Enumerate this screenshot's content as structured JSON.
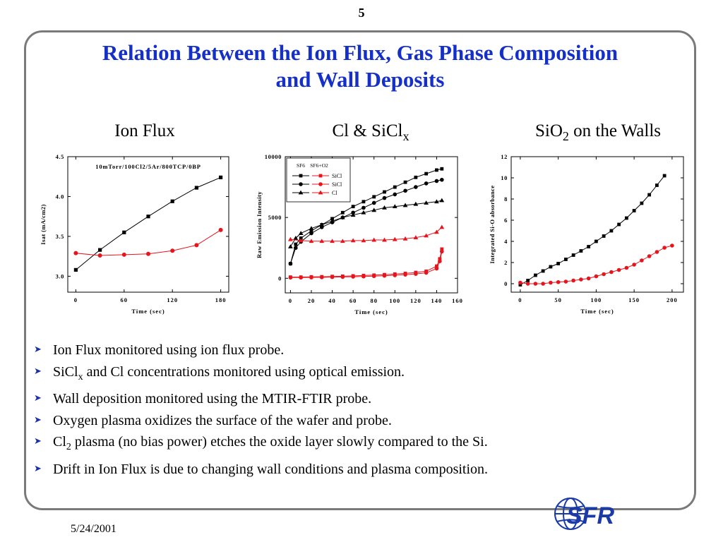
{
  "page_number": "5",
  "title_line1": "Relation Between the Ion Flux, Gas Phase Composition",
  "title_line2": "and Wall Deposits",
  "headings": {
    "ion_flux": "Ion Flux",
    "clsicl_pre": "Cl & SiCl",
    "clsicl_sub": "x",
    "sio2_pre": "SiO",
    "sio2_sub": "2",
    "sio2_post": " on the Walls"
  },
  "bullets": [
    {
      "pre": "Ion Flux monitored using ion flux probe.",
      "sub": "",
      "post": ""
    },
    {
      "pre": "SiCl",
      "sub": "x",
      "post": " and Cl concentrations monitored using optical emission."
    },
    {
      "pre": "Wall deposition monitored using the MTIR-FTIR probe.",
      "sub": "",
      "post": ""
    },
    {
      "pre": "Oxygen plasma oxidizes the surface of the wafer and probe.",
      "sub": "",
      "post": ""
    },
    {
      "pre": "Cl",
      "sub": "2",
      "post": " plasma (no bias power) etches the oxide layer slowly compared to the Si."
    },
    {
      "pre": "Drift in Ion Flux is due to changing wall conditions and plasma composition.",
      "sub": "",
      "post": ""
    }
  ],
  "date": "5/24/2001",
  "logo_text": "SFR",
  "colors": {
    "title": "#1530c8",
    "red": "#e8141c",
    "black": "#000000",
    "logo_blue": "#1a3aa8"
  },
  "chart_data": [
    {
      "type": "line",
      "annotation": "10mTorr/100Cl2/5Ar/800TCP/0BP",
      "xlabel": "Time (sec)",
      "ylabel": "Isat (mA/cm2)",
      "xlim": [
        -10,
        190
      ],
      "ylim": [
        2.8,
        4.5
      ],
      "xticks": [
        0,
        60,
        120,
        180
      ],
      "yticks": [
        3.0,
        3.5,
        4.0,
        4.5
      ],
      "ytick_labels": [
        "3.0",
        "3.5",
        "4.0",
        "4.5"
      ],
      "grid": false,
      "series": [
        {
          "color": "#000000",
          "marker": "square",
          "x": [
            0,
            30,
            60,
            90,
            120,
            150,
            180
          ],
          "y": [
            3.08,
            3.33,
            3.55,
            3.75,
            3.94,
            4.11,
            4.24
          ]
        },
        {
          "color": "#e8141c",
          "marker": "circle",
          "x": [
            0,
            30,
            60,
            90,
            120,
            150,
            180
          ],
          "y": [
            3.29,
            3.26,
            3.27,
            3.28,
            3.32,
            3.39,
            3.58
          ]
        }
      ]
    },
    {
      "type": "line",
      "xlabel": "Time (sec)",
      "ylabel": "Raw Emission Intensity",
      "xlim": [
        -5,
        160
      ],
      "ylim": [
        -1200,
        10000
      ],
      "xticks": [
        0,
        20,
        40,
        60,
        80,
        100,
        120,
        140,
        160
      ],
      "yticks": [
        0,
        5000,
        10000
      ],
      "ytick_labels": [
        "0",
        "5000",
        "10000"
      ],
      "grid": false,
      "legend": {
        "headers": [
          "SF6",
          "SF6+O2"
        ],
        "rows": [
          "SiCl",
          "SiCl",
          "Cl"
        ],
        "position": "top-left"
      },
      "series": [
        {
          "name": "SiCl",
          "color": "#000000",
          "marker": "square",
          "x": [
            0,
            5,
            10,
            20,
            30,
            40,
            50,
            60,
            70,
            80,
            90,
            100,
            110,
            120,
            130,
            140,
            145
          ],
          "y": [
            1200,
            2800,
            3300,
            3900,
            4400,
            4900,
            5400,
            5900,
            6300,
            6700,
            7100,
            7500,
            7900,
            8300,
            8600,
            8900,
            9000
          ]
        },
        {
          "name": "SiCl",
          "color": "#000000",
          "marker": "circle",
          "x": [
            0,
            5,
            10,
            20,
            30,
            40,
            50,
            60,
            70,
            80,
            90,
            100,
            110,
            120,
            130,
            140,
            145
          ],
          "y": [
            1200,
            2500,
            3000,
            3700,
            4200,
            4600,
            5000,
            5400,
            5800,
            6200,
            6600,
            6900,
            7200,
            7500,
            7800,
            8000,
            8100
          ]
        },
        {
          "name": "Cl",
          "color": "#000000",
          "marker": "triangle",
          "x": [
            0,
            5,
            10,
            20,
            30,
            40,
            50,
            60,
            70,
            80,
            90,
            100,
            110,
            120,
            130,
            140,
            145
          ],
          "y": [
            2600,
            3300,
            3700,
            4100,
            4400,
            4700,
            5000,
            5200,
            5400,
            5600,
            5800,
            5900,
            6000,
            6100,
            6200,
            6300,
            6400
          ]
        },
        {
          "name": "SiCl",
          "color": "#e8141c",
          "marker": "square",
          "x": [
            0,
            10,
            20,
            30,
            40,
            50,
            60,
            70,
            80,
            90,
            100,
            110,
            120,
            130,
            140,
            143,
            145
          ],
          "y": [
            100,
            100,
            120,
            130,
            150,
            170,
            200,
            230,
            260,
            300,
            350,
            400,
            480,
            580,
            1000,
            1600,
            2400
          ]
        },
        {
          "name": "SiCl",
          "color": "#e8141c",
          "marker": "circle",
          "x": [
            0,
            10,
            20,
            30,
            40,
            50,
            60,
            70,
            80,
            90,
            100,
            110,
            120,
            130,
            140,
            143,
            145
          ],
          "y": [
            60,
            60,
            70,
            80,
            100,
            110,
            130,
            150,
            180,
            210,
            250,
            300,
            360,
            450,
            800,
            1400,
            2200
          ]
        },
        {
          "name": "Cl",
          "color": "#e8141c",
          "marker": "triangle",
          "x": [
            0,
            10,
            20,
            30,
            40,
            50,
            60,
            70,
            80,
            90,
            100,
            110,
            120,
            130,
            140,
            145
          ],
          "y": [
            3200,
            3100,
            3050,
            3050,
            3050,
            3050,
            3100,
            3100,
            3150,
            3150,
            3200,
            3250,
            3350,
            3500,
            3800,
            4200
          ]
        }
      ]
    },
    {
      "type": "line",
      "xlabel": "Time (sec)",
      "ylabel": "Integrated Si-O absorbance",
      "xlim": [
        -12,
        215
      ],
      "ylim": [
        -0.8,
        12
      ],
      "xticks": [
        0,
        50,
        100,
        150,
        200
      ],
      "yticks": [
        0,
        2,
        4,
        6,
        8,
        10,
        12
      ],
      "ytick_labels": [
        "0",
        "2",
        "4",
        "6",
        "8",
        "10",
        "12"
      ],
      "grid": false,
      "series": [
        {
          "color": "#000000",
          "marker": "square",
          "x": [
            0,
            10,
            20,
            30,
            40,
            50,
            60,
            70,
            80,
            90,
            100,
            110,
            120,
            130,
            140,
            150,
            160,
            170,
            180,
            190
          ],
          "y": [
            -0.1,
            0.3,
            0.8,
            1.2,
            1.6,
            1.9,
            2.3,
            2.7,
            3.1,
            3.5,
            4.0,
            4.5,
            5.0,
            5.6,
            6.2,
            6.9,
            7.6,
            8.4,
            9.3,
            10.2
          ]
        },
        {
          "color": "#e8141c",
          "marker": "circle",
          "x": [
            0,
            10,
            20,
            30,
            40,
            50,
            60,
            70,
            80,
            90,
            100,
            110,
            120,
            130,
            140,
            150,
            160,
            170,
            180,
            190,
            200
          ],
          "y": [
            0.1,
            0.0,
            0.0,
            0.0,
            0.1,
            0.15,
            0.2,
            0.3,
            0.4,
            0.5,
            0.7,
            0.9,
            1.1,
            1.3,
            1.5,
            1.8,
            2.2,
            2.6,
            3.0,
            3.4,
            3.6
          ]
        }
      ]
    }
  ]
}
